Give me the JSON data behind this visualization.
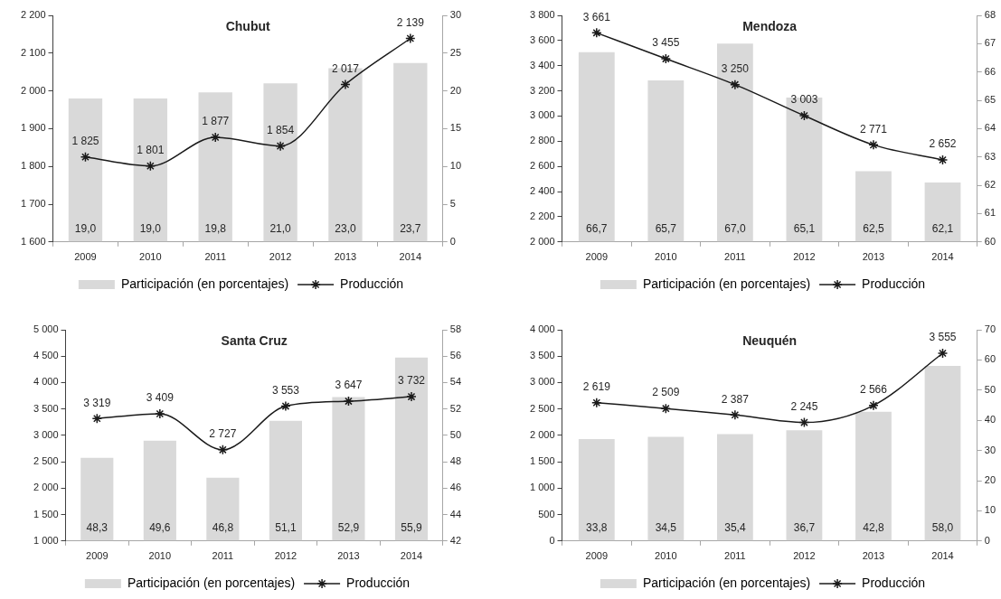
{
  "chart_data": [
    {
      "type": "bar",
      "title": "Chubut",
      "categories": [
        "2009",
        "2010",
        "2011",
        "2012",
        "2013",
        "2014"
      ],
      "series": [
        {
          "name": "Participación (en porcentajes)",
          "axis": "y2",
          "color": "#d9d9d9",
          "values": [
            19.0,
            19.0,
            19.8,
            21.0,
            23.0,
            23.7
          ],
          "value_labels": [
            "19,0",
            "19,0",
            "19,8",
            "21,0",
            "23,0",
            "23,7"
          ]
        },
        {
          "name": "Producción",
          "type": "line",
          "color": "#1a1a1a",
          "marker": "cross",
          "values": [
            1825,
            1801,
            1877,
            1854,
            2017,
            2139
          ],
          "value_labels": [
            "1 825",
            "1 801",
            "1 877",
            "1 854",
            "2 017",
            "2 139"
          ]
        }
      ],
      "ylim": [
        1600,
        2200
      ],
      "yticks": [
        {
          "value": 1600,
          "label": "1 600"
        },
        {
          "value": 1700,
          "label": "1 700"
        },
        {
          "value": 1800,
          "label": "1 800"
        },
        {
          "value": 1900,
          "label": "1 900"
        },
        {
          "value": 2000,
          "label": "2 000"
        },
        {
          "value": 2100,
          "label": "2 100"
        },
        {
          "value": 2200,
          "label": "2 200"
        }
      ],
      "y2lim": [
        0,
        30
      ],
      "y2ticks": [
        0,
        5,
        10,
        15,
        20,
        25,
        30
      ],
      "legend": "bottom"
    },
    {
      "type": "bar",
      "title": "Mendoza",
      "categories": [
        "2009",
        "2010",
        "2011",
        "2012",
        "2013",
        "2014"
      ],
      "series": [
        {
          "name": "Participación (en porcentajes)",
          "axis": "y2",
          "color": "#d9d9d9",
          "values": [
            66.7,
            65.7,
            67.0,
            65.1,
            62.5,
            62.1
          ],
          "value_labels": [
            "66,7",
            "65,7",
            "67,0",
            "65,1",
            "62,5",
            "62,1"
          ]
        },
        {
          "name": "Producción",
          "type": "line",
          "color": "#1a1a1a",
          "marker": "cross",
          "values": [
            3661,
            3455,
            3250,
            3003,
            2771,
            2652
          ],
          "value_labels": [
            "3 661",
            "3 455",
            "3 250",
            "3 003",
            "2 771",
            "2 652"
          ]
        }
      ],
      "ylim": [
        2000,
        3800
      ],
      "yticks": [
        {
          "value": 2000,
          "label": "2 000"
        },
        {
          "value": 2200,
          "label": "2 200"
        },
        {
          "value": 2400,
          "label": "2 400"
        },
        {
          "value": 2600,
          "label": "2 600"
        },
        {
          "value": 2800,
          "label": "2 800"
        },
        {
          "value": 3000,
          "label": "3 000"
        },
        {
          "value": 3200,
          "label": "3 200"
        },
        {
          "value": 3400,
          "label": "3 400"
        },
        {
          "value": 3600,
          "label": "3 600"
        },
        {
          "value": 3800,
          "label": "3 800"
        }
      ],
      "y2lim": [
        60,
        68
      ],
      "y2ticks": [
        60,
        61,
        62,
        63,
        64,
        65,
        66,
        67,
        68
      ],
      "legend": "bottom"
    },
    {
      "type": "bar",
      "title": "Santa Cruz",
      "categories": [
        "2009",
        "2010",
        "2011",
        "2012",
        "2013",
        "2014"
      ],
      "series": [
        {
          "name": "Participación (en porcentajes)",
          "axis": "y2",
          "color": "#d9d9d9",
          "values": [
            48.3,
            49.6,
            46.8,
            51.1,
            52.9,
            55.9
          ],
          "value_labels": [
            "48,3",
            "49,6",
            "46,8",
            "51,1",
            "52,9",
            "55,9"
          ]
        },
        {
          "name": "Producción",
          "type": "line",
          "color": "#1a1a1a",
          "marker": "cross",
          "values": [
            3319,
            3409,
            2727,
            3553,
            3647,
            3732
          ],
          "value_labels": [
            "3 319",
            "3 409",
            "2 727",
            "3 553",
            "3 647",
            "3 732"
          ]
        }
      ],
      "ylim": [
        1000,
        5000
      ],
      "yticks": [
        {
          "value": 1000,
          "label": "1 000"
        },
        {
          "value": 1500,
          "label": "1 500"
        },
        {
          "value": 2000,
          "label": "2 000"
        },
        {
          "value": 2500,
          "label": "2 500"
        },
        {
          "value": 3000,
          "label": "3 000"
        },
        {
          "value": 3500,
          "label": "3 500"
        },
        {
          "value": 4000,
          "label": "4 000"
        },
        {
          "value": 4500,
          "label": "4 500"
        },
        {
          "value": 5000,
          "label": "5 000"
        }
      ],
      "y2lim": [
        42,
        58
      ],
      "y2ticks": [
        42,
        44,
        46,
        48,
        50,
        52,
        54,
        56,
        58
      ],
      "legend": "bottom"
    },
    {
      "type": "bar",
      "title": "Neuquén",
      "categories": [
        "2009",
        "2010",
        "2011",
        "2012",
        "2013",
        "2014"
      ],
      "series": [
        {
          "name": "Participación (en porcentajes)",
          "axis": "y2",
          "color": "#d9d9d9",
          "values": [
            33.8,
            34.5,
            35.4,
            36.7,
            42.8,
            58.0
          ],
          "value_labels": [
            "33,8",
            "34,5",
            "35,4",
            "36,7",
            "42,8",
            "58,0"
          ]
        },
        {
          "name": "Producción",
          "type": "line",
          "color": "#1a1a1a",
          "marker": "cross",
          "values": [
            2619,
            2509,
            2387,
            2245,
            2566,
            3555
          ],
          "value_labels": [
            "2 619",
            "2 509",
            "2 387",
            "2 245",
            "2 566",
            "3 555"
          ]
        }
      ],
      "ylim": [
        0,
        4000
      ],
      "yticks": [
        0,
        500,
        {
          "value": 1000,
          "label": "1 000"
        },
        {
          "value": 1500,
          "label": "1 500"
        },
        {
          "value": 2000,
          "label": "2 000"
        },
        {
          "value": 2500,
          "label": "2 500"
        },
        {
          "value": 3000,
          "label": "3 000"
        },
        {
          "value": 3500,
          "label": "3 500"
        },
        {
          "value": 4000,
          "label": "4 000"
        }
      ],
      "y2lim": [
        0,
        70
      ],
      "y2ticks": [
        0,
        10,
        20,
        30,
        40,
        50,
        60,
        70
      ],
      "legend": "bottom"
    }
  ]
}
